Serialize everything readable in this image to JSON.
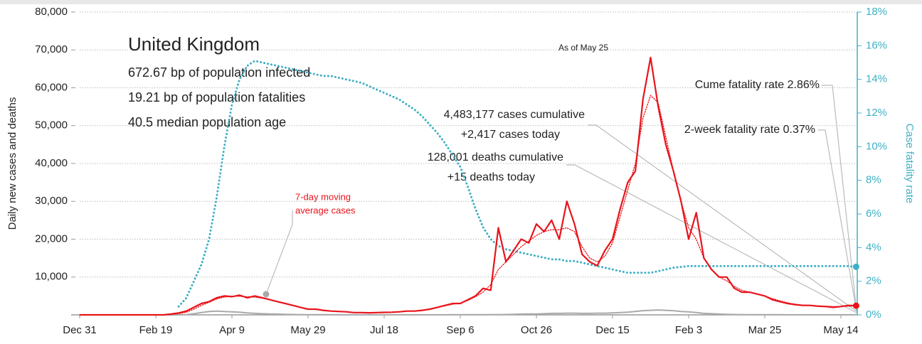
{
  "chart_data": {
    "type": "line",
    "ylabel": "Daily new cases and deaths",
    "y2label": "Case fatality rate",
    "annotations": [
      "United Kingdom",
      "672.67 bp of population infected",
      "19.21 bp of population fatalities",
      "40.5 median population age",
      "As of May 25",
      "Cume fatality rate 2.86%",
      "2-week fatality rate 0.37%",
      "4,483,177 cases cumulative",
      "+2,417 cases today",
      "128,001 deaths cumulative",
      "+15 deaths today",
      "7-day moving",
      "average cases"
    ],
    "categories": [
      "Dec 31",
      null,
      null,
      null,
      null,
      null,
      null,
      null,
      null,
      null,
      "Feb 19",
      null,
      null,
      null,
      null,
      null,
      null,
      null,
      null,
      null,
      "Apr 9",
      null,
      null,
      null,
      null,
      null,
      null,
      null,
      null,
      null,
      "May 29",
      null,
      null,
      null,
      null,
      null,
      null,
      null,
      null,
      null,
      "Jul 18",
      null,
      null,
      null,
      null,
      null,
      null,
      null,
      null,
      null,
      "Sep 6",
      null,
      null,
      null,
      null,
      null,
      null,
      null,
      null,
      null,
      "Oct 26",
      null,
      null,
      null,
      null,
      null,
      null,
      null,
      null,
      null,
      "Dec 15",
      null,
      null,
      null,
      null,
      null,
      null,
      null,
      null,
      null,
      "Feb 3",
      null,
      null,
      null,
      null,
      null,
      null,
      null,
      null,
      null,
      "Mar 25",
      null,
      null,
      null,
      null,
      null,
      null,
      null,
      null,
      null,
      "May 14",
      null,
      null
    ],
    "series": [
      {
        "color": "#e8141b",
        "style": "solid",
        "width": 2.2,
        "values": [
          0,
          0,
          0,
          0,
          0,
          0,
          0,
          0,
          0,
          0,
          0,
          0,
          200,
          500,
          1000,
          2000,
          3000,
          3500,
          4500,
          5000,
          4800,
          5200,
          4500,
          5000,
          4500,
          4000,
          3500,
          3000,
          2500,
          2000,
          1500,
          1500,
          1200,
          1000,
          900,
          800,
          600,
          600,
          550,
          600,
          650,
          700,
          800,
          1000,
          1000,
          1200,
          1500,
          2000,
          2500,
          3000,
          3000,
          4000,
          5000,
          7000,
          6500,
          23000,
          14000,
          17000,
          20000,
          19000,
          24000,
          22000,
          25000,
          20000,
          30000,
          24000,
          16000,
          14000,
          13000,
          17000,
          20000,
          28000,
          35000,
          38000,
          57000,
          68000,
          55000,
          45000,
          38000,
          30000,
          20000,
          27000,
          15000,
          12000,
          10000,
          10000,
          7000,
          6000,
          6000,
          5500,
          5000,
          4000,
          3500,
          3000,
          2700,
          2500,
          2500,
          2300,
          2200,
          2000,
          2200,
          2500,
          2417
        ]
      },
      {
        "color": "#e8141b",
        "style": "dotted",
        "width": 1.3,
        "values": [
          0,
          0,
          0,
          0,
          0,
          0,
          0,
          0,
          0,
          0,
          0,
          0,
          100,
          300,
          700,
          1500,
          2500,
          3300,
          4200,
          4700,
          4900,
          4900,
          4800,
          4700,
          4400,
          4000,
          3500,
          3000,
          2500,
          2000,
          1600,
          1400,
          1200,
          1000,
          900,
          800,
          650,
          600,
          580,
          600,
          650,
          720,
          820,
          950,
          1050,
          1200,
          1500,
          1900,
          2400,
          2800,
          3100,
          3800,
          4800,
          6000,
          8000,
          12000,
          14000,
          16000,
          18000,
          19500,
          21000,
          22000,
          22500,
          22500,
          23000,
          22000,
          18000,
          15000,
          14000,
          15500,
          19000,
          26000,
          33000,
          40000,
          52000,
          58000,
          56000,
          47000,
          38000,
          30000,
          23000,
          20000,
          15000,
          12000,
          10000,
          9000,
          7500,
          6500,
          6000,
          5500,
          5000,
          4300,
          3700,
          3200,
          2800,
          2600,
          2500,
          2400,
          2300,
          2200,
          2200,
          2300,
          2350
        ]
      },
      {
        "color": "#aaaaaa",
        "style": "solid",
        "width": 2,
        "values": [
          0,
          0,
          0,
          0,
          0,
          0,
          0,
          0,
          0,
          0,
          0,
          0,
          0,
          0,
          50,
          300,
          600,
          900,
          1000,
          900,
          800,
          700,
          500,
          400,
          300,
          250,
          200,
          150,
          100,
          80,
          60,
          50,
          40,
          30,
          20,
          15,
          10,
          10,
          10,
          10,
          10,
          10,
          10,
          10,
          10,
          10,
          15,
          20,
          20,
          30,
          30,
          40,
          50,
          60,
          70,
          80,
          100,
          150,
          200,
          250,
          250,
          300,
          400,
          400,
          450,
          450,
          400,
          400,
          450,
          450,
          500,
          600,
          700,
          900,
          1100,
          1200,
          1300,
          1200,
          1100,
          900,
          800,
          600,
          400,
          300,
          200,
          150,
          100,
          80,
          60,
          50,
          40,
          30,
          30,
          20,
          20,
          15,
          15,
          15,
          10,
          10,
          10,
          15,
          15
        ]
      },
      {
        "color": "#3fb0c4",
        "style": "dotted",
        "width": 3,
        "axis": "y2",
        "values": [
          null,
          null,
          null,
          null,
          null,
          null,
          null,
          null,
          null,
          null,
          null,
          null,
          null,
          0.5,
          1,
          2,
          3,
          4.5,
          7,
          10,
          12.5,
          14,
          14.8,
          15.1,
          15,
          14.9,
          14.8,
          14.7,
          14.6,
          14.5,
          14.4,
          14.3,
          14.2,
          14.2,
          14.1,
          14,
          13.9,
          13.8,
          13.6,
          13.4,
          13.2,
          13,
          12.8,
          12.5,
          12.2,
          11.8,
          11.3,
          10.8,
          10.2,
          9.5,
          8.8,
          7.6,
          6.3,
          5.2,
          4.5,
          4.1,
          3.9,
          3.8,
          3.7,
          3.6,
          3.5,
          3.4,
          3.3,
          3.3,
          3.2,
          3.2,
          3.1,
          3,
          2.9,
          2.8,
          2.7,
          2.6,
          2.5,
          2.5,
          2.5,
          2.5,
          2.6,
          2.7,
          2.8,
          2.85,
          2.9,
          2.9,
          2.9,
          2.9,
          2.9,
          2.9,
          2.9,
          2.9,
          2.9,
          2.9,
          2.9,
          2.9,
          2.9,
          2.9,
          2.9,
          2.9,
          2.9,
          2.9,
          2.9,
          2.9,
          2.9,
          2.9,
          2.86
        ]
      }
    ],
    "ylim": [
      0,
      80000
    ],
    "yticks": [
      {
        "value": 10000,
        "label": "10,000"
      },
      {
        "value": 20000,
        "label": "20,000"
      },
      {
        "value": 30000,
        "label": "30,000"
      },
      {
        "value": 40000,
        "label": "40,000"
      },
      {
        "value": 50000,
        "label": "50,000"
      },
      {
        "value": 60000,
        "label": "60,000"
      },
      {
        "value": 70000,
        "label": "70,000"
      },
      {
        "value": 80000,
        "label": "80,000"
      }
    ],
    "y2lim": [
      0,
      18
    ],
    "y2ticks": [
      {
        "value": 0,
        "label": "0%"
      },
      {
        "value": 2,
        "label": "2%"
      },
      {
        "value": 4,
        "label": "4%"
      },
      {
        "value": 6,
        "label": "6%"
      },
      {
        "value": 8,
        "label": "8%"
      },
      {
        "value": 10,
        "label": "10%"
      },
      {
        "value": 12,
        "label": "12%"
      },
      {
        "value": 14,
        "label": "14%"
      },
      {
        "value": 16,
        "label": "16%"
      },
      {
        "value": 18,
        "label": "18%"
      }
    ],
    "y2color": "#3fb0c4",
    "grid": true
  }
}
